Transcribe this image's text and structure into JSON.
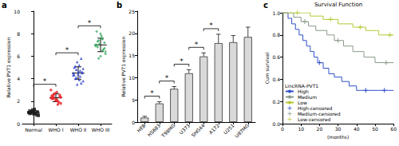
{
  "chart_data": [
    {
      "type": "scatter",
      "label": "a",
      "y_label": "Relative PVT1 expression",
      "ylim": [
        0,
        10
      ],
      "yticks": [
        0,
        2,
        4,
        6,
        8,
        10
      ],
      "series": [
        {
          "name": "Normal",
          "color": "#1a1a1a",
          "marker": "square",
          "values": [
            1.0,
            0.9,
            1.1,
            0.8,
            1.2,
            0.95,
            1.05,
            0.85,
            1.15,
            0.75,
            1.25,
            1.0,
            0.9,
            1.1,
            0.7,
            1.3,
            0.95,
            1.05,
            1.0,
            0.88
          ],
          "mean": 1.0,
          "sd": 0.15
        },
        {
          "name": "WHO I",
          "color": "#e8262a",
          "marker": "circle",
          "values": [
            2.3,
            2.0,
            2.6,
            1.8,
            2.8,
            2.2,
            2.4,
            2.1,
            2.5,
            1.9,
            2.7,
            3.0,
            1.7,
            2.3,
            2.35,
            2.15,
            2.45,
            2.55,
            2.05,
            2.25
          ],
          "mean": 2.3,
          "sd": 0.35
        },
        {
          "name": "WHO II",
          "color": "#2a3ec8",
          "marker": "triangle",
          "values": [
            4.5,
            4.2,
            4.8,
            3.8,
            5.2,
            4.0,
            4.6,
            4.4,
            5.0,
            3.6,
            5.5,
            4.3,
            4.7,
            4.1,
            4.9,
            3.9,
            5.1,
            4.5,
            4.6,
            4.35,
            5.8,
            3.5
          ],
          "mean": 4.5,
          "sd": 0.55
        },
        {
          "name": "WHO III",
          "color": "#2ea85a",
          "marker": "diamond",
          "values": [
            7.0,
            6.5,
            7.4,
            6.2,
            7.8,
            6.8,
            7.2,
            6.0,
            8.2,
            6.6,
            7.1,
            6.9,
            7.5,
            5.8,
            6.4,
            7.6,
            7.3,
            6.7,
            8.0,
            7.0
          ],
          "mean": 7.0,
          "sd": 0.6
        }
      ],
      "comparisons": [
        {
          "from": "Normal",
          "to": "WHO I",
          "label": "*"
        },
        {
          "from": "WHO I",
          "to": "WHO II",
          "label": "*"
        },
        {
          "from": "WHO II",
          "to": "WHO III",
          "label": "*"
        }
      ]
    },
    {
      "type": "bar",
      "label": "b",
      "y_label": "Relative PVT1 expression",
      "categories": [
        "HEB",
        "HS683",
        "T98MG",
        "U373",
        "SHG44",
        "A172",
        "U251",
        "U87MG"
      ],
      "values": [
        1.0,
        4.2,
        7.5,
        11.0,
        14.8,
        17.8,
        18.0,
        19.2
      ],
      "errors": [
        0.3,
        0.4,
        0.5,
        0.8,
        0.8,
        2.0,
        1.5,
        2.2
      ],
      "color": "#d9d9d9",
      "ylim": [
        0,
        25
      ],
      "yticks": [
        0,
        5,
        10,
        15,
        20,
        25
      ],
      "comparisons": [
        {
          "from": "HEB",
          "to": "HS683",
          "label": "*"
        },
        {
          "from": "HS683",
          "to": "T98MG",
          "label": "*"
        },
        {
          "from": "T98MG",
          "to": "U373",
          "label": "*"
        },
        {
          "from": "U373",
          "to": "SHG44",
          "label": "*"
        },
        {
          "from": "SHG44",
          "to": "A172",
          "label": "*"
        }
      ]
    },
    {
      "type": "survival",
      "label": "c",
      "title": "Survival Function",
      "x_label": "(months)",
      "y_label": "Cum survival",
      "legend_title": "LincRNA-PVT1",
      "legend": "lower left",
      "xlim": [
        0,
        60
      ],
      "xticks": [
        0,
        10,
        20,
        30,
        40,
        50,
        60
      ],
      "ylim": [
        0,
        1
      ],
      "yticks": [
        {
          "value": 0,
          "label": "0.0"
        },
        {
          "value": 0.2,
          "label": "0.2"
        },
        {
          "value": 0.4,
          "label": "0.4"
        },
        {
          "value": 0.6,
          "label": "0.6"
        },
        {
          "value": 0.8,
          "label": "0.8"
        },
        {
          "value": 1,
          "label": "1.0"
        }
      ],
      "series": [
        {
          "name": "High",
          "type": "line",
          "color": "#3050c8",
          "x": [
            0,
            3,
            5,
            7,
            9,
            11,
            13,
            15,
            17,
            19,
            22,
            25,
            28,
            32,
            36,
            40,
            60
          ],
          "values": [
            1,
            0.95,
            0.9,
            0.85,
            0.8,
            0.75,
            0.7,
            0.65,
            0.6,
            0.55,
            0.5,
            0.45,
            0.42,
            0.38,
            0.34,
            0.3,
            0.3
          ]
        },
        {
          "name": "Medium",
          "type": "line",
          "color": "#8a9a8a",
          "x": [
            0,
            6,
            10,
            14,
            18,
            24,
            28,
            33,
            38,
            44,
            50,
            60
          ],
          "values": [
            1,
            0.96,
            0.92,
            0.88,
            0.84,
            0.8,
            0.75,
            0.7,
            0.65,
            0.6,
            0.55,
            0.55
          ]
        },
        {
          "name": "Low",
          "type": "line",
          "color": "#b5c832",
          "x": [
            0,
            15,
            22,
            30,
            38,
            45,
            52,
            60
          ],
          "values": [
            1,
            0.97,
            0.94,
            0.9,
            0.87,
            0.84,
            0.8,
            0.8
          ]
        },
        {
          "name": "High-censored",
          "type": "scatter",
          "marker": "plus",
          "color": "#3050c8",
          "x": [
            20,
            45,
            55
          ],
          "values": [
            0.55,
            0.3,
            0.3
          ]
        },
        {
          "name": "Medium-censored",
          "type": "scatter",
          "marker": "plus",
          "color": "#8a9a8a",
          "x": [
            12,
            30,
            56
          ],
          "values": [
            0.92,
            0.75,
            0.55
          ]
        },
        {
          "name": "Low-censored",
          "type": "scatter",
          "marker": "plus",
          "color": "#b5c832",
          "x": [
            8,
            26,
            42,
            58
          ],
          "values": [
            1,
            0.94,
            0.87,
            0.8
          ]
        }
      ]
    }
  ]
}
